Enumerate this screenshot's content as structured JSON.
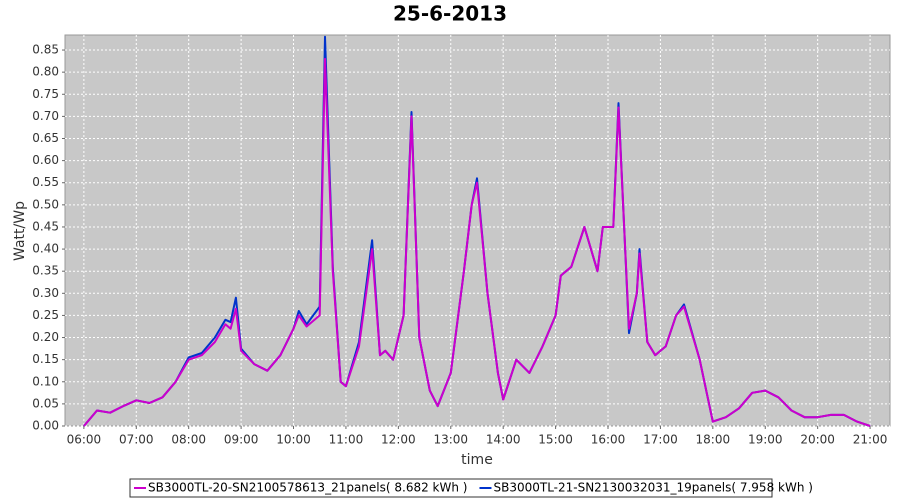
{
  "chart_data": {
    "type": "line",
    "title": "25-6-2013",
    "x_label": "time",
    "y_label": "Watt/Wp",
    "x": [
      6.0,
      6.25,
      6.5,
      6.75,
      7.0,
      7.25,
      7.5,
      7.75,
      8.0,
      8.25,
      8.5,
      8.7,
      8.8,
      8.9,
      9.0,
      9.25,
      9.5,
      9.75,
      10.0,
      10.1,
      10.25,
      10.5,
      10.6,
      10.75,
      10.9,
      11.0,
      11.25,
      11.5,
      11.65,
      11.75,
      11.9,
      12.1,
      12.25,
      12.4,
      12.6,
      12.75,
      13.0,
      13.25,
      13.4,
      13.5,
      13.7,
      13.9,
      14.0,
      14.25,
      14.5,
      14.75,
      15.0,
      15.1,
      15.3,
      15.55,
      15.8,
      15.9,
      16.1,
      16.2,
      16.4,
      16.55,
      16.6,
      16.75,
      16.9,
      17.1,
      17.3,
      17.45,
      17.75,
      18.0,
      18.25,
      18.5,
      18.75,
      19.0,
      19.25,
      19.5,
      19.75,
      20.0,
      20.25,
      20.5,
      20.75,
      21.0
    ],
    "series": [
      {
        "name": "SB3000TL-20-SN2100578613_21panels( 8.682 kWh )",
        "color": "#cc00cc",
        "values": [
          0.0,
          0.035,
          0.03,
          0.045,
          0.058,
          0.052,
          0.065,
          0.1,
          0.15,
          0.16,
          0.19,
          0.23,
          0.22,
          0.265,
          0.17,
          0.14,
          0.125,
          0.16,
          0.22,
          0.25,
          0.225,
          0.25,
          0.83,
          0.35,
          0.1,
          0.09,
          0.18,
          0.4,
          0.16,
          0.17,
          0.15,
          0.25,
          0.7,
          0.2,
          0.08,
          0.045,
          0.12,
          0.35,
          0.5,
          0.55,
          0.3,
          0.12,
          0.06,
          0.15,
          0.12,
          0.18,
          0.25,
          0.34,
          0.36,
          0.45,
          0.35,
          0.45,
          0.45,
          0.72,
          0.22,
          0.3,
          0.39,
          0.19,
          0.16,
          0.18,
          0.25,
          0.27,
          0.15,
          0.01,
          0.02,
          0.04,
          0.075,
          0.08,
          0.065,
          0.035,
          0.02,
          0.02,
          0.025,
          0.025,
          0.01,
          0.0
        ]
      },
      {
        "name": "SB3000TL-21-SN2130032031_19panels( 7.958 kWh )",
        "color": "#0033cc",
        "values": [
          0.0,
          0.035,
          0.03,
          0.045,
          0.058,
          0.052,
          0.065,
          0.1,
          0.155,
          0.165,
          0.2,
          0.24,
          0.235,
          0.29,
          0.175,
          0.14,
          0.125,
          0.16,
          0.22,
          0.26,
          0.23,
          0.27,
          0.88,
          0.36,
          0.1,
          0.09,
          0.19,
          0.42,
          0.16,
          0.17,
          0.15,
          0.25,
          0.71,
          0.2,
          0.08,
          0.045,
          0.12,
          0.35,
          0.5,
          0.56,
          0.3,
          0.12,
          0.06,
          0.15,
          0.12,
          0.18,
          0.25,
          0.34,
          0.36,
          0.45,
          0.35,
          0.45,
          0.45,
          0.73,
          0.21,
          0.3,
          0.4,
          0.19,
          0.16,
          0.18,
          0.25,
          0.275,
          0.15,
          0.01,
          0.02,
          0.04,
          0.075,
          0.08,
          0.065,
          0.035,
          0.02,
          0.02,
          0.025,
          0.025,
          0.01,
          0.0
        ]
      }
    ],
    "xlim": [
      5.64,
      21.38
    ],
    "xticks": [
      {
        "value": 6,
        "label": "06:00"
      },
      {
        "value": 7,
        "label": "07:00"
      },
      {
        "value": 8,
        "label": "08:00"
      },
      {
        "value": 9,
        "label": "09:00"
      },
      {
        "value": 10,
        "label": "10:00"
      },
      {
        "value": 11,
        "label": "11:00"
      },
      {
        "value": 12,
        "label": "12:00"
      },
      {
        "value": 13,
        "label": "13:00"
      },
      {
        "value": 14,
        "label": "14:00"
      },
      {
        "value": 15,
        "label": "15:00"
      },
      {
        "value": 16,
        "label": "16:00"
      },
      {
        "value": 17,
        "label": "17:00"
      },
      {
        "value": 18,
        "label": "18:00"
      },
      {
        "value": 19,
        "label": "19:00"
      },
      {
        "value": 20,
        "label": "20:00"
      },
      {
        "value": 21,
        "label": "21:00"
      }
    ],
    "ylim": [
      0,
      0.884
    ],
    "yticks": [
      {
        "value": 0,
        "label": "0.00"
      },
      0.05,
      {
        "value": 0.1,
        "label": "0.10"
      },
      0.15,
      {
        "value": 0.2,
        "label": "0.20"
      },
      0.25,
      {
        "value": 0.3,
        "label": "0.30"
      },
      0.35,
      {
        "value": 0.4,
        "label": "0.40"
      },
      0.45,
      {
        "value": 0.5,
        "label": "0.50"
      },
      0.55,
      {
        "value": 0.6,
        "label": "0.60"
      },
      0.65,
      {
        "value": 0.7,
        "label": "0.70"
      },
      0.75,
      {
        "value": 0.8,
        "label": "0.80"
      },
      0.85
    ],
    "grid": true,
    "legend": "bottom"
  }
}
